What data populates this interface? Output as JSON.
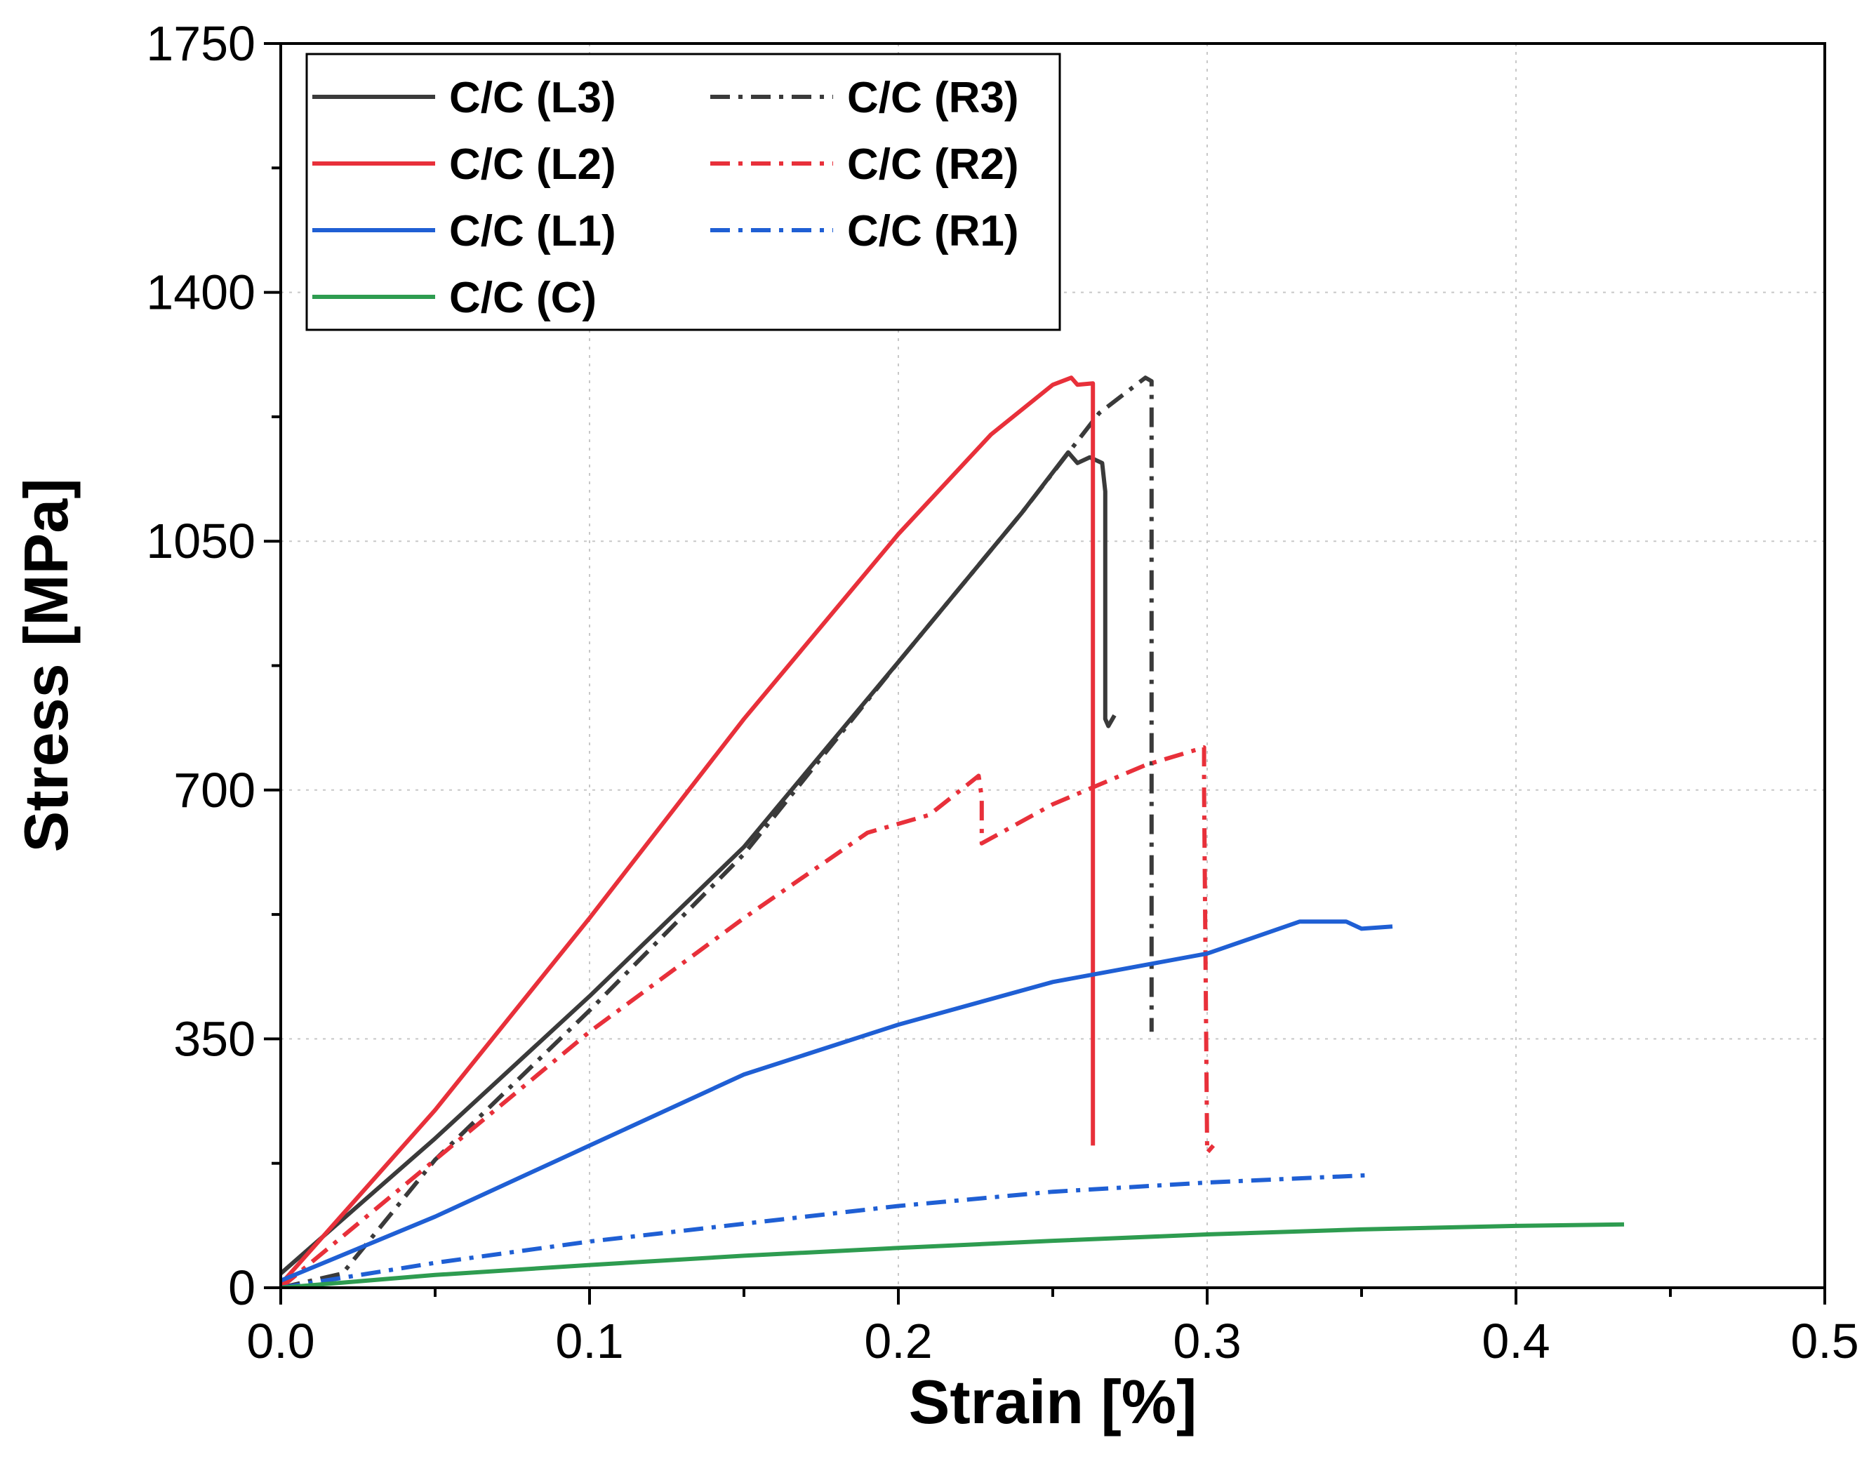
{
  "chart_data": {
    "type": "line",
    "title": "",
    "xlabel": "Strain [%]",
    "ylabel": "Stress [MPa]",
    "xlim": [
      0.0,
      0.5
    ],
    "ylim": [
      0,
      1750
    ],
    "xticks": [
      0.0,
      0.1,
      0.2,
      0.3,
      0.4,
      0.5
    ],
    "xtick_labels": [
      "0.0",
      "0.1",
      "0.2",
      "0.3",
      "0.4",
      "0.5"
    ],
    "yticks": [
      0,
      350,
      700,
      1050,
      1400,
      1750
    ],
    "ytick_labels": [
      "0",
      "350",
      "700",
      "1050",
      "1400",
      "1750"
    ],
    "grid": true,
    "legend_position": "top-left",
    "series": [
      {
        "name": "C/C (L3)",
        "color": "#3a3a3a",
        "style": "solid",
        "points": [
          [
            0.0,
            20
          ],
          [
            0.05,
            210
          ],
          [
            0.1,
            410
          ],
          [
            0.15,
            620
          ],
          [
            0.2,
            880
          ],
          [
            0.24,
            1090
          ],
          [
            0.255,
            1175
          ],
          [
            0.258,
            1160
          ],
          [
            0.262,
            1168
          ],
          [
            0.266,
            1160
          ],
          [
            0.267,
            1120
          ],
          [
            0.267,
            800
          ],
          [
            0.268,
            790
          ],
          [
            0.27,
            805
          ]
        ]
      },
      {
        "name": "C/C (R3)",
        "color": "#3a3a3a",
        "style": "dashdot",
        "points": [
          [
            0.0,
            0
          ],
          [
            0.02,
            20
          ],
          [
            0.05,
            180
          ],
          [
            0.1,
            390
          ],
          [
            0.15,
            610
          ],
          [
            0.2,
            880
          ],
          [
            0.24,
            1090
          ],
          [
            0.265,
            1230
          ],
          [
            0.28,
            1280
          ],
          [
            0.282,
            1275
          ],
          [
            0.282,
            1240
          ],
          [
            0.282,
            360
          ]
        ]
      },
      {
        "name": "C/C (L2)",
        "color": "#e8303a",
        "style": "solid",
        "points": [
          [
            0.0,
            5
          ],
          [
            0.05,
            250
          ],
          [
            0.1,
            520
          ],
          [
            0.15,
            800
          ],
          [
            0.2,
            1060
          ],
          [
            0.23,
            1200
          ],
          [
            0.25,
            1270
          ],
          [
            0.256,
            1280
          ],
          [
            0.258,
            1270
          ],
          [
            0.263,
            1272
          ],
          [
            0.263,
            1200
          ],
          [
            0.263,
            200
          ]
        ]
      },
      {
        "name": "C/C (R2)",
        "color": "#e8303a",
        "style": "dashdot",
        "points": [
          [
            0.0,
            0
          ],
          [
            0.05,
            180
          ],
          [
            0.1,
            360
          ],
          [
            0.15,
            520
          ],
          [
            0.19,
            640
          ],
          [
            0.21,
            665
          ],
          [
            0.226,
            720
          ],
          [
            0.227,
            690
          ],
          [
            0.227,
            625
          ],
          [
            0.25,
            680
          ],
          [
            0.28,
            735
          ],
          [
            0.299,
            760
          ],
          [
            0.299,
            700
          ],
          [
            0.3,
            190
          ],
          [
            0.302,
            200
          ]
        ]
      },
      {
        "name": "C/C (L1)",
        "color": "#1f5fd4",
        "style": "solid",
        "points": [
          [
            0.0,
            10
          ],
          [
            0.05,
            100
          ],
          [
            0.1,
            200
          ],
          [
            0.15,
            300
          ],
          [
            0.2,
            370
          ],
          [
            0.25,
            430
          ],
          [
            0.3,
            470
          ],
          [
            0.33,
            515
          ],
          [
            0.345,
            515
          ],
          [
            0.35,
            505
          ],
          [
            0.36,
            508
          ]
        ]
      },
      {
        "name": "C/C (R1)",
        "color": "#1f5fd4",
        "style": "dashdot",
        "points": [
          [
            0.0,
            0
          ],
          [
            0.05,
            35
          ],
          [
            0.1,
            65
          ],
          [
            0.15,
            90
          ],
          [
            0.2,
            115
          ],
          [
            0.25,
            135
          ],
          [
            0.3,
            148
          ],
          [
            0.351,
            158
          ]
        ]
      },
      {
        "name": "C/C (C)",
        "color": "#2e9c50",
        "style": "solid",
        "points": [
          [
            0.0,
            0
          ],
          [
            0.05,
            18
          ],
          [
            0.1,
            32
          ],
          [
            0.15,
            45
          ],
          [
            0.2,
            56
          ],
          [
            0.25,
            66
          ],
          [
            0.3,
            75
          ],
          [
            0.35,
            82
          ],
          [
            0.4,
            87
          ],
          [
            0.435,
            89
          ]
        ]
      }
    ]
  }
}
